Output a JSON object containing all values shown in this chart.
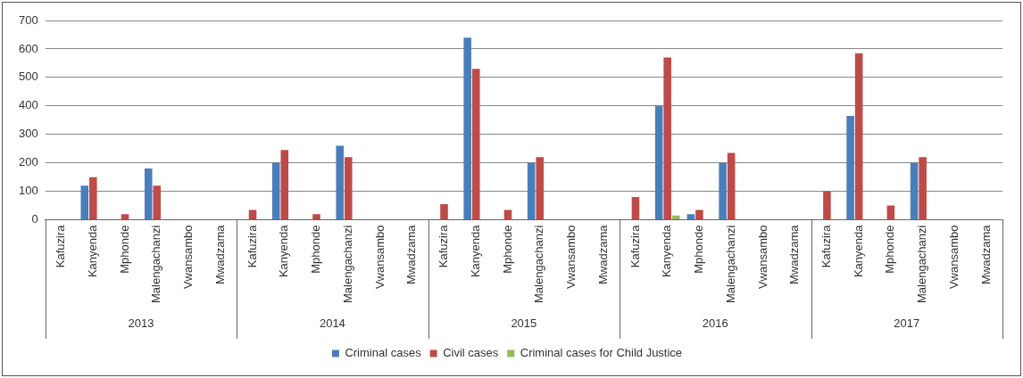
{
  "chart_data": {
    "type": "bar",
    "categories": [
      "Kafuzira",
      "Kanyenda",
      "Mphonde",
      "Malengachanzi",
      "Vwansambo",
      "Mwadzama",
      "Kafuzira",
      "Kanyenda",
      "Mphonde",
      "Malengachanzi",
      "Vwansambo",
      "Mwadzama",
      "Kafuzira",
      "Kanyenda",
      "Mphonde",
      "Malengachanzi",
      "Vwansambo",
      "Mwadzama",
      "Kafuzira",
      "Kanyenda",
      "Mphonde",
      "Malengachanzi",
      "Vwansambo",
      "Mwadzama",
      "Kafuzira",
      "Kanyenda",
      "Mphonde",
      "Malengachanzi",
      "Vwansambo",
      "Mwadzama"
    ],
    "series": [
      {
        "name": "Criminal cases",
        "color": "#4a7ebb",
        "values": [
          0,
          120,
          0,
          180,
          0,
          0,
          0,
          200,
          0,
          260,
          0,
          0,
          0,
          640,
          0,
          200,
          0,
          0,
          0,
          400,
          20,
          200,
          0,
          0,
          0,
          365,
          0,
          200,
          0,
          0
        ]
      },
      {
        "name": "Civil cases",
        "color": "#be4b48",
        "values": [
          0,
          150,
          20,
          120,
          0,
          0,
          35,
          245,
          20,
          220,
          0,
          0,
          55,
          530,
          35,
          220,
          0,
          0,
          80,
          570,
          35,
          235,
          0,
          0,
          100,
          585,
          50,
          220,
          0,
          0
        ]
      },
      {
        "name": "Criminal cases for Child Justice",
        "color": "#98b954",
        "values": [
          0,
          0,
          0,
          0,
          0,
          0,
          0,
          0,
          0,
          0,
          0,
          0,
          0,
          0,
          0,
          0,
          0,
          0,
          0,
          15,
          0,
          0,
          0,
          0,
          0,
          0,
          0,
          0,
          0,
          0
        ]
      }
    ],
    "annotations": [
      "2013",
      "2014",
      "2015",
      "2016",
      "2017"
    ],
    "ylim": [
      0,
      700
    ],
    "yticks": [
      0,
      100,
      200,
      300,
      400,
      500,
      600,
      700
    ],
    "grid": "y",
    "legend": "bottom"
  }
}
